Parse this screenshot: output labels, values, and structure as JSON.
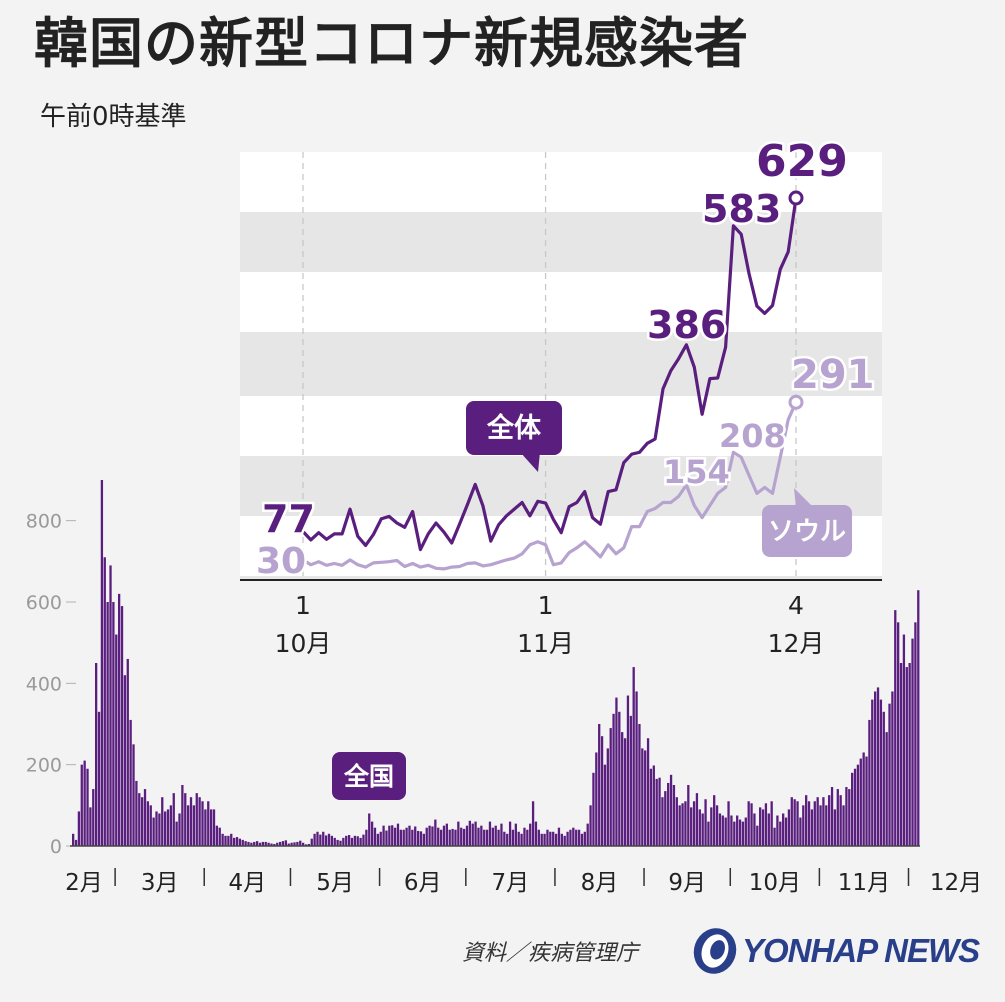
{
  "title": "韓国の新型コロナ新規感染者",
  "subtitle": "午前0時基準",
  "source": "資料／疾病管理庁",
  "logo": "YONHAP NEWS",
  "colors": {
    "national": "#5a1f7e",
    "seoul": "#b7a3cf",
    "bars": "#5a1f7e",
    "axis_text": "#9a9a9a"
  },
  "chart_data": [
    {
      "type": "bar",
      "series_label": "全国",
      "ylim": [
        0,
        900
      ],
      "yticks": [
        0,
        200,
        400,
        600,
        800
      ],
      "month_labels": [
        "2月",
        "3月",
        "4月",
        "5月",
        "6月",
        "7月",
        "8月",
        "9月",
        "10月",
        "11月",
        "12月"
      ],
      "months": [
        {
          "label": "2月",
          "values": [
            30,
            15,
            85,
            200,
            210,
            190,
            95,
            140,
            450,
            330,
            900,
            710,
            600,
            690,
            600
          ]
        },
        {
          "label": "3月",
          "values": [
            520,
            620,
            590,
            420,
            460,
            310,
            250,
            160,
            130,
            120,
            140,
            110,
            100,
            70,
            85,
            80,
            120,
            85,
            90,
            100,
            130,
            60,
            80,
            150,
            130,
            100,
            120,
            100,
            130,
            120,
            110
          ]
        },
        {
          "label": "4月",
          "values": [
            90,
            110,
            90,
            90,
            50,
            45,
            30,
            25,
            25,
            30,
            20,
            22,
            18,
            15,
            12,
            10,
            8,
            10,
            12,
            8,
            10,
            10,
            8,
            6,
            5,
            8,
            10,
            12,
            14,
            6
          ]
        },
        {
          "label": "5月",
          "values": [
            8,
            9,
            10,
            13,
            8,
            4,
            5,
            18,
            30,
            35,
            28,
            35,
            26,
            30,
            25,
            20,
            15,
            13,
            20,
            25,
            27,
            20,
            25,
            24,
            20,
            28,
            40,
            80,
            60,
            45,
            30
          ]
        },
        {
          "label": "6月",
          "values": [
            35,
            50,
            38,
            50,
            51,
            45,
            55,
            40,
            40,
            45,
            50,
            40,
            48,
            37,
            36,
            30,
            45,
            50,
            48,
            65,
            45,
            40,
            50,
            55,
            40,
            42,
            40,
            60,
            45,
            42
          ]
        },
        {
          "label": "7月",
          "values": [
            50,
            62,
            55,
            60,
            45,
            50,
            40,
            40,
            60,
            45,
            50,
            40,
            55,
            35,
            30,
            60,
            40,
            55,
            35,
            30,
            45,
            40,
            55,
            110,
            60,
            40,
            30,
            30,
            40,
            35,
            35
          ]
        },
        {
          "label": "8月",
          "values": [
            30,
            45,
            30,
            25,
            35,
            40,
            45,
            40,
            40,
            30,
            35,
            55,
            100,
            180,
            230,
            300,
            270,
            200,
            240,
            290,
            325,
            365,
            330,
            280,
            265,
            370,
            320,
            440,
            380,
            300,
            240
          ]
        },
        {
          "label": "9月",
          "values": [
            235,
            265,
            190,
            198,
            165,
            168,
            120,
            135,
            155,
            175,
            150,
            120,
            100,
            105,
            110,
            150,
            95,
            110,
            130,
            90,
            80,
            115,
            60,
            95,
            125,
            100,
            80,
            75,
            70,
            110
          ]
        },
        {
          "label": "10月",
          "values": [
            75,
            60,
            75,
            65,
            60,
            70,
            110,
            105,
            80,
            50,
            95,
            90,
            105,
            80,
            110,
            45,
            75,
            60,
            80,
            70,
            90,
            120,
            115,
            110,
            70,
            100,
            125,
            110,
            90,
            110,
            120
          ]
        },
        {
          "label": "11月",
          "values": [
            100,
            120,
            100,
            125,
            145,
            90,
            140,
            125,
            100,
            145,
            140,
            180,
            190,
            200,
            215,
            230,
            220,
            310,
            360,
            380,
            390,
            360,
            330,
            280,
            350,
            380,
            580,
            550,
            450,
            520,
            440
          ]
        },
        {
          "label": "12月",
          "values": [
            450,
            510,
            550,
            629
          ]
        }
      ]
    },
    {
      "type": "line",
      "x_ticks": [
        {
          "day": "1",
          "month": "10月"
        },
        {
          "day": "1",
          "month": "11月"
        },
        {
          "day": "4",
          "month": "12月"
        }
      ],
      "series": [
        {
          "name": "全体",
          "values": [
            77,
            63,
            75,
            64,
            73,
            73,
            114,
            69,
            54,
            72,
            98,
            102,
            91,
            84,
            110,
            47,
            73,
            91,
            76,
            58,
            89,
            121,
            155,
            119,
            61,
            88,
            103,
            114,
            125,
            103,
            127,
            124,
            97,
            75,
            118,
            125,
            143,
            100,
            89,
            143,
            146,
            191,
            205,
            208,
            223,
            230,
            313,
            343,
            363,
            386,
            349,
            271,
            330,
            331,
            382,
            583,
            569,
            504,
            450,
            438,
            451,
            511,
            540,
            629
          ],
          "labels": [
            {
              "index": 0,
              "text": "77"
            },
            {
              "index": 49,
              "text": "386"
            },
            {
              "index": 55,
              "text": "583"
            },
            {
              "index": 63,
              "text": "629"
            }
          ]
        },
        {
          "name": "ソウル",
          "values": [
            30,
            22,
            27,
            21,
            24,
            21,
            30,
            22,
            18,
            25,
            26,
            27,
            29,
            19,
            24,
            18,
            21,
            16,
            15,
            18,
            19,
            24,
            25,
            20,
            22,
            26,
            30,
            33,
            40,
            55,
            60,
            55,
            22,
            25,
            42,
            50,
            60,
            48,
            35,
            55,
            40,
            50,
            85,
            85,
            110,
            115,
            125,
            125,
            135,
            154,
            120,
            100,
            120,
            140,
            150,
            208,
            200,
            170,
            140,
            150,
            140,
            200,
            262,
            291
          ],
          "labels": [
            {
              "index": 0,
              "text": "30"
            },
            {
              "index": 49,
              "text": "154"
            },
            {
              "index": 55,
              "text": "208"
            },
            {
              "index": 63,
              "text": "291"
            }
          ]
        }
      ]
    }
  ]
}
